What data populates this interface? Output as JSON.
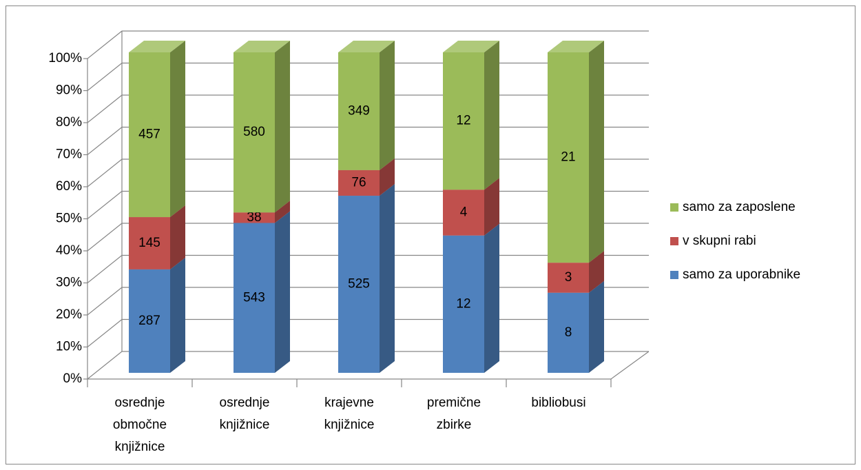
{
  "chart_data": {
    "type": "bar",
    "stacking": "percent",
    "categories": [
      "osrednje območne knjižnice",
      "osrednje knjižnice",
      "krajevne knjižnice",
      "premične zbirke",
      "bibliobusi"
    ],
    "series": [
      {
        "name": "samo za uporabnike",
        "color": "#4f81bd",
        "values": [
          287,
          543,
          525,
          12,
          8
        ]
      },
      {
        "name": "v skupni rabi",
        "color": "#c0504d",
        "values": [
          145,
          38,
          76,
          4,
          3
        ]
      },
      {
        "name": "samo za zaposlene",
        "color": "#9bbb59",
        "values": [
          457,
          580,
          349,
          12,
          21
        ]
      }
    ],
    "ylim": [
      0,
      100
    ],
    "yticks": [
      {
        "value": 0,
        "label": "0%"
      },
      {
        "value": 10,
        "label": "10%"
      },
      {
        "value": 20,
        "label": "20%"
      },
      {
        "value": 30,
        "label": "30%"
      },
      {
        "value": 40,
        "label": "40%"
      },
      {
        "value": 50,
        "label": "50%"
      },
      {
        "value": 60,
        "label": "60%"
      },
      {
        "value": 70,
        "label": "70%"
      },
      {
        "value": 80,
        "label": "80%"
      },
      {
        "value": 90,
        "label": "90%"
      },
      {
        "value": 100,
        "label": "100%"
      }
    ],
    "grid": true,
    "legend": "right"
  }
}
